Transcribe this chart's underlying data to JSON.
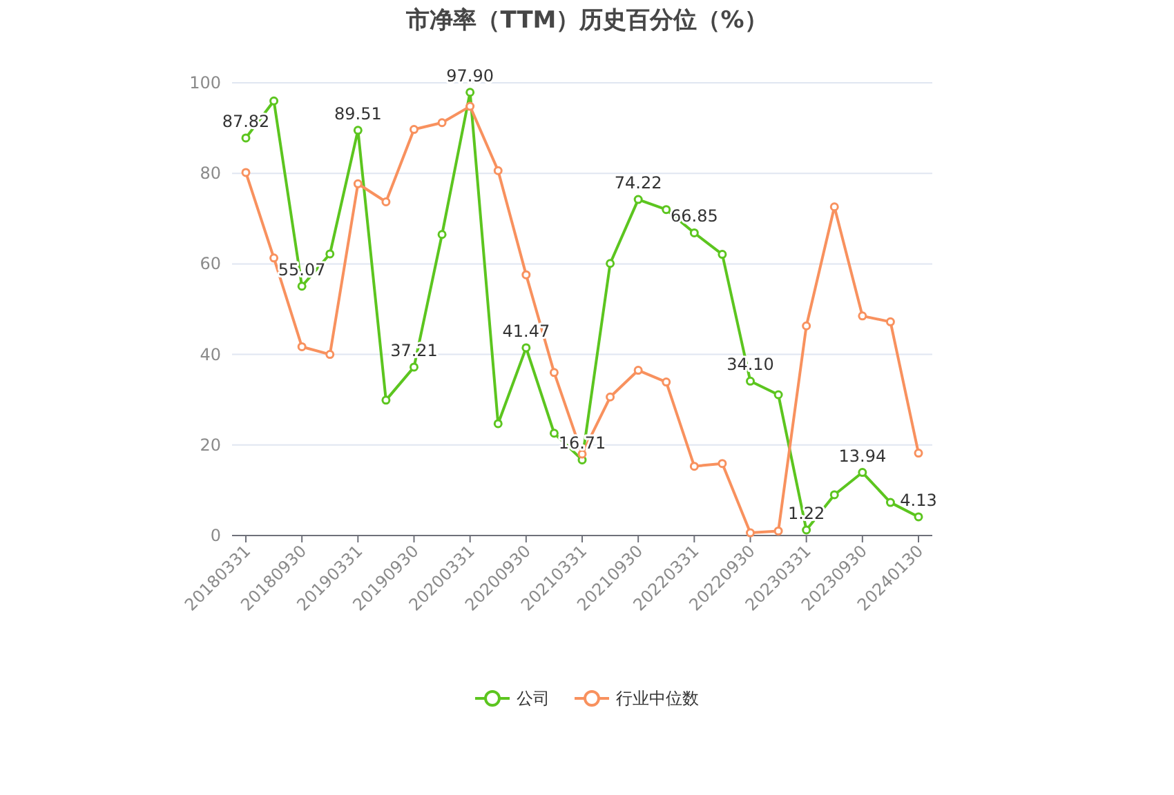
{
  "chart_data": {
    "type": "line",
    "title": "市净率（TTM）历史百分位（%）",
    "categories": [
      "20180331",
      null,
      "20180930",
      null,
      "20190331",
      null,
      "20190930",
      null,
      "20200331",
      null,
      "20200930",
      null,
      "20210331",
      null,
      "20210930",
      null,
      "20220331",
      null,
      "20220930",
      null,
      "20230331",
      null,
      "20230930",
      null,
      "20240130"
    ],
    "series": [
      {
        "name": "公司",
        "color": "#5cc51f",
        "values": [
          87.82,
          96.0,
          55.07,
          62.2,
          89.51,
          29.9,
          37.21,
          66.5,
          97.9,
          24.7,
          41.47,
          22.6,
          16.71,
          60.1,
          74.22,
          72.0,
          66.85,
          62.1,
          34.1,
          31.1,
          1.22,
          9.0,
          13.94,
          7.3,
          4.13
        ],
        "value_labels": [
          "87.82",
          null,
          "55.07",
          null,
          "89.51",
          null,
          "37.21",
          null,
          "97.90",
          null,
          "41.47",
          null,
          "16.71",
          null,
          "74.22",
          null,
          "66.85",
          null,
          "34.10",
          null,
          "1.22",
          null,
          "13.94",
          null,
          "4.13"
        ]
      },
      {
        "name": "行业中位数",
        "color": "#f8915e",
        "values": [
          80.2,
          61.3,
          41.7,
          40.0,
          77.7,
          73.7,
          89.7,
          91.2,
          94.8,
          80.6,
          57.6,
          36.0,
          18.0,
          30.6,
          36.5,
          33.9,
          15.3,
          15.9,
          0.6,
          1.0,
          46.3,
          72.6,
          48.5,
          47.2,
          18.2
        ]
      }
    ],
    "ylim": [
      0,
      100
    ],
    "yticks": [
      0,
      20,
      40,
      60,
      80,
      100
    ],
    "grid": "y",
    "legend": "bottom",
    "marker": "circle"
  }
}
